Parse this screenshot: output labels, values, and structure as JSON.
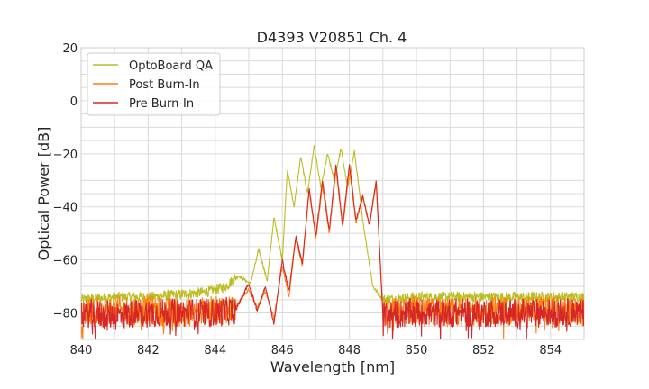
{
  "chart_data": {
    "type": "line",
    "title": "D4393 V20851 Ch. 4",
    "xlabel": "Wavelength [nm]",
    "ylabel": "Optical Power [dB]",
    "xlim": [
      840,
      855
    ],
    "ylim": [
      -90,
      20
    ],
    "xticks": [
      840,
      842,
      844,
      846,
      848,
      850,
      852,
      854
    ],
    "yticks": [
      20,
      0,
      -20,
      -40,
      -60,
      -80
    ],
    "grid": true,
    "legend_position": "top-left",
    "series": [
      {
        "name": "OptoBoard QA",
        "color": "#bcbd22",
        "x": [
          840,
          841,
          842,
          843,
          843.8,
          844.3,
          844.7,
          845.05,
          845.3,
          845.55,
          845.75,
          846.0,
          846.15,
          846.35,
          846.55,
          846.75,
          846.95,
          847.15,
          847.35,
          847.55,
          847.75,
          847.95,
          848.15,
          848.4,
          848.7,
          849.0,
          850,
          851,
          852,
          853,
          854,
          855
        ],
        "values": [
          -75,
          -74,
          -74,
          -73,
          -72,
          -70,
          -66,
          -69,
          -56,
          -68,
          -44,
          -60,
          -26,
          -40,
          -21,
          -35,
          -17,
          -33,
          -20,
          -30,
          -18,
          -33,
          -19,
          -45,
          -70,
          -75,
          -74,
          -74,
          -74,
          -74,
          -74,
          -74
        ]
      },
      {
        "name": "Post Burn-In",
        "color": "#ff7f0e",
        "x": [
          840,
          841,
          842,
          843,
          844,
          844.6,
          845.0,
          845.25,
          845.5,
          845.75,
          846.0,
          846.2,
          846.4,
          846.6,
          846.8,
          847.0,
          847.2,
          847.4,
          847.6,
          847.8,
          848.0,
          848.2,
          848.4,
          848.6,
          848.8,
          849.0,
          850,
          851,
          852,
          853,
          854,
          855
        ],
        "values": [
          -80,
          -79,
          -79,
          -80,
          -79,
          -78,
          -71,
          -78,
          -72,
          -82,
          -62,
          -74,
          -52,
          -62,
          -34,
          -52,
          -32,
          -50,
          -26,
          -48,
          -26,
          -46,
          -36,
          -47,
          -31,
          -80,
          -79,
          -80,
          -79,
          -79,
          -79,
          -80
        ]
      },
      {
        "name": "Pre Burn-In",
        "color": "#d62728",
        "x": [
          840,
          841,
          842,
          843,
          844,
          844.6,
          845.0,
          845.25,
          845.5,
          845.75,
          846.0,
          846.2,
          846.4,
          846.6,
          846.8,
          847.0,
          847.2,
          847.4,
          847.6,
          847.8,
          848.0,
          848.2,
          848.4,
          848.6,
          848.8,
          849.0,
          850,
          851,
          852,
          853,
          854,
          855
        ],
        "values": [
          -80,
          -81,
          -80,
          -80,
          -80,
          -79,
          -69,
          -79,
          -70,
          -84,
          -60,
          -72,
          -51,
          -61,
          -33,
          -51,
          -30,
          -49,
          -24,
          -47,
          -24,
          -45,
          -36,
          -47,
          -30,
          -81,
          -80,
          -80,
          -80,
          -80,
          -80,
          -80
        ]
      }
    ]
  }
}
